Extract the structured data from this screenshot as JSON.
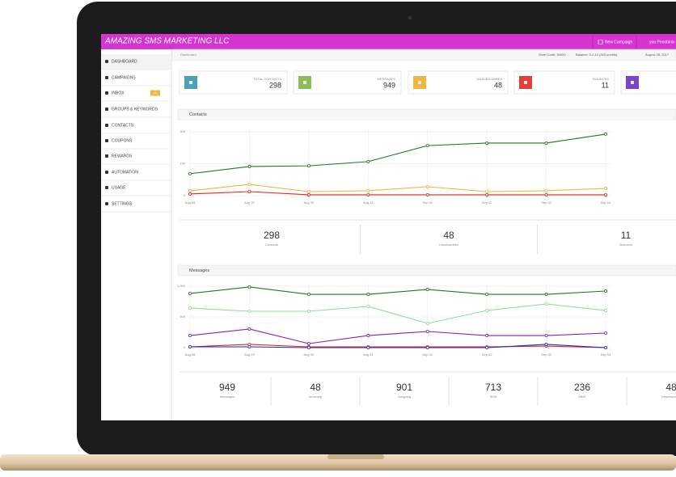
{
  "header": {
    "brand": "AMAZING SMS MARKETING LLC",
    "new_campaign": "New Campaign",
    "user": "you Penobiniv"
  },
  "sidebar": {
    "items": [
      "DASHBOARD",
      "CAMPAIGNS",
      "INBOX",
      "GROUPS & KEYWORDS",
      "CONTACTS",
      "COUPONS",
      "REWARDS",
      "AUTOMATION",
      "USAGE",
      "SETTINGS"
    ],
    "inbox_badge": "11"
  },
  "topbar": {
    "breadcrumb": "Dashboard",
    "short_code": "Short Code: 94000",
    "balance": "Balance: 5-0.10 (502 credits)",
    "date": "August 28, 2017"
  },
  "stat_cards": [
    {
      "label": "TOTAL CONTACTS",
      "value": 298,
      "color": "#4e9fb8"
    },
    {
      "label": "MESSAGES",
      "value": 949,
      "color": "#8cbd5a"
    },
    {
      "label": "UNSUBSCRIBES",
      "value": 48,
      "color": "#f2b53f"
    },
    {
      "label": "BOUNCES",
      "value": 11,
      "color": "#e2413a"
    },
    {
      "color": "#7b45c7"
    }
  ],
  "contacts_panel": {
    "title": "Contacts",
    "chart_data": {
      "type": "line",
      "categories": [
        "Aug 28",
        "Aug 29",
        "Aug 30",
        "Aug 31",
        "Sep 01",
        "Sep 02",
        "Sep 03",
        "Sep 04"
      ],
      "series": [
        {
          "color": "#1f7a1f",
          "values": [
            103,
            137,
            140,
            160,
            235,
            247,
            247,
            289
          ]
        },
        {
          "color": "#f2b53f",
          "values": [
            23,
            53,
            19,
            23,
            42,
            19,
            23,
            34
          ]
        },
        {
          "color": "#e2261f",
          "values": [
            8,
            19,
            4,
            4,
            4,
            4,
            4,
            4
          ]
        }
      ],
      "ylim": [
        0,
        300
      ],
      "yticks": [
        0,
        150,
        300
      ],
      "grid": true
    },
    "summary": [
      {
        "value": 298,
        "label": "Contacts"
      },
      {
        "value": 48,
        "label": "Unsubscribes"
      },
      {
        "value": 11,
        "label": "Bounces"
      }
    ]
  },
  "messages_panel": {
    "title": "Messages",
    "chart_data": {
      "type": "line",
      "categories": [
        "Aug 28",
        "Aug 29",
        "Aug 30",
        "Aug 31",
        "Sep 01",
        "Sep 02",
        "Sep 03",
        "Sep 04"
      ],
      "series": [
        {
          "color": "#1f7a1f",
          "values": [
            882,
            987,
            868,
            868,
            947,
            868,
            868,
            921
          ]
        },
        {
          "color": "#8fe08f",
          "values": [
            645,
            592,
            592,
            671,
            395,
            605,
            711,
            605
          ]
        },
        {
          "color": "#8a1fb0",
          "values": [
            197,
            303,
            66,
            197,
            263,
            197,
            197,
            237
          ]
        },
        {
          "color": "#e2261f",
          "values": [
            13,
            53,
            13,
            13,
            13,
            13,
            26,
            0
          ]
        },
        {
          "color": "#1f2fc0",
          "values": [
            13,
            13,
            0,
            0,
            0,
            0,
            53,
            0
          ]
        }
      ],
      "ylim": [
        0,
        1000
      ],
      "yticks": [
        0,
        500,
        {
          "value": 1000,
          "label": "1,000"
        }
      ],
      "grid": true
    },
    "summary": [
      {
        "value": 949,
        "label": "Messages"
      },
      {
        "value": 48,
        "label": "Incoming"
      },
      {
        "value": 901,
        "label": "Outgoing"
      },
      {
        "value": 713,
        "label": "SMS"
      },
      {
        "value": 236,
        "label": "MMS"
      },
      {
        "value": 48,
        "label": "Unsubscribes"
      }
    ]
  }
}
